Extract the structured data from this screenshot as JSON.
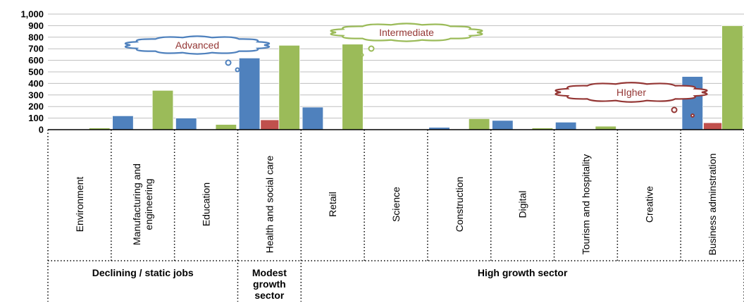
{
  "chart_data": {
    "type": "bar",
    "ylim": [
      0,
      1000
    ],
    "yticks": [
      "0",
      "100",
      "200",
      "300",
      "400",
      "500",
      "600",
      "700",
      "800",
      "900",
      "1,000"
    ],
    "grid": true,
    "categories": [
      "Environment",
      "Manufacturing and engineering",
      "Education",
      "Health and social care",
      "Retail",
      "Science",
      "Construction",
      "Digital",
      "Tourism and hospitality",
      "Creative",
      "Business adminstration"
    ],
    "category_lines": [
      [
        "Environment"
      ],
      [
        "Manufacturing and",
        "engineering"
      ],
      [
        "Education"
      ],
      [
        "Health and social care"
      ],
      [
        "Retail"
      ],
      [
        "Science"
      ],
      [
        "Construction"
      ],
      [
        "Digital"
      ],
      [
        "Tourism and hospitality"
      ],
      [
        "Creative"
      ],
      [
        "Business adminstration"
      ]
    ],
    "series": [
      {
        "name": "Advanced",
        "color": "#4f81bd",
        "values": [
          0,
          120,
          100,
          620,
          195,
          0,
          20,
          80,
          65,
          0,
          460
        ]
      },
      {
        "name": "Higher",
        "color": "#c0504d",
        "values": [
          0,
          0,
          0,
          85,
          0,
          0,
          0,
          0,
          0,
          0,
          60
        ]
      },
      {
        "name": "Intermediate",
        "color": "#9bbb59",
        "values": [
          15,
          340,
          45,
          730,
          740,
          0,
          95,
          15,
          30,
          0,
          900
        ]
      }
    ],
    "groups": [
      {
        "lines": [
          "Declining / static jobs"
        ],
        "from": 0,
        "to": 2
      },
      {
        "lines": [
          "Modest",
          "growth",
          "sector"
        ],
        "from": 3,
        "to": 3
      },
      {
        "lines": [
          "High growth sector"
        ],
        "from": 4,
        "to": 10
      }
    ],
    "callouts": [
      {
        "text": "Advanced",
        "series": "Advanced",
        "color": "#4f81bd",
        "text_color": "#943634"
      },
      {
        "text": "Intermediate",
        "series": "Intermediate",
        "color": "#9bbb59",
        "text_color": "#943634"
      },
      {
        "text": "HIgher",
        "series": "Higher",
        "color": "#943634",
        "text_color": "#943634"
      }
    ]
  }
}
